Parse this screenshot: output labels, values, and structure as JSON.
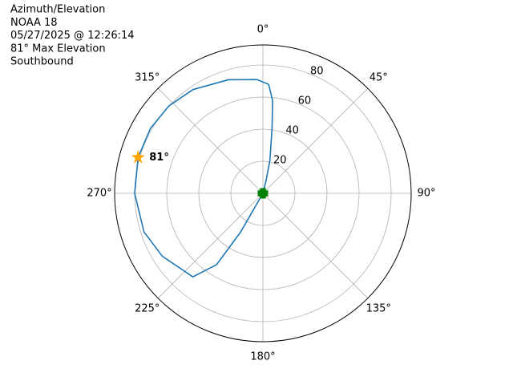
{
  "chart_data": {
    "type": "polar-line",
    "title_lines": [
      "Azimuth/Elevation",
      "NOAA 18",
      "05/27/2025 @ 12:26:14",
      "81° Max Elevation",
      "Southbound"
    ],
    "x": [
      15,
      14,
      12,
      8,
      6,
      3,
      357,
      343,
      326,
      313,
      300,
      286,
      270,
      252,
      238,
      220,
      213,
      210,
      210,
      210
    ],
    "values": [
      0,
      8,
      21,
      41,
      58,
      68,
      71,
      74,
      78,
      80,
      81,
      81,
      80,
      78,
      74,
      68,
      53,
      28,
      8,
      0
    ],
    "color": "#1f77b4",
    "start_color": "#008000",
    "max_point": {
      "azimuth": 286,
      "r": 81,
      "label": "81°",
      "color": "#ffa500"
    },
    "theta_zero": "N",
    "theta_direction": "clockwise",
    "xticks": [
      {
        "value": 0,
        "label": "0°"
      },
      {
        "value": 45,
        "label": "45°"
      },
      {
        "value": 90,
        "label": "90°"
      },
      {
        "value": 135,
        "label": "135°"
      },
      {
        "value": 180,
        "label": "180°"
      },
      {
        "value": 225,
        "label": "225°"
      },
      {
        "value": 270,
        "label": "270°"
      },
      {
        "value": 315,
        "label": "315°"
      }
    ],
    "ylim": [
      0,
      92.5
    ],
    "yticks": [
      20,
      40,
      60,
      80
    ],
    "grid": true
  }
}
